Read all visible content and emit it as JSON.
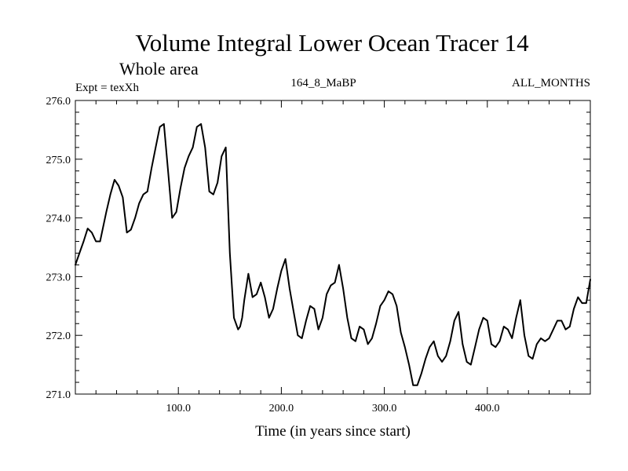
{
  "chart_data": {
    "type": "line",
    "title": "Volume Integral Lower Ocean Tracer 14",
    "subtitle": "Whole area",
    "annotations": {
      "experiment": "Expt = texXh",
      "period": "164_8_MaBP",
      "months": "ALL_MONTHS"
    },
    "xlabel": "Time (in years since start)",
    "ylabel": "",
    "xlim": [
      0,
      500
    ],
    "ylim": [
      271.0,
      276.0
    ],
    "x_ticks": [
      100,
      200,
      300,
      400
    ],
    "x_tick_labels": [
      "100.0",
      "200.0",
      "300.0",
      "400.0"
    ],
    "y_ticks": [
      271,
      272,
      273,
      274,
      275,
      276
    ],
    "y_tick_labels": [
      "271.0",
      "272.0",
      "273.0",
      "274.0",
      "275.0",
      "276.0"
    ],
    "grid": false,
    "series": [
      {
        "name": "Lower Ocean Tracer 14",
        "x": [
          0,
          4,
          8,
          12,
          16,
          20,
          24,
          30,
          34,
          38,
          42,
          46,
          50,
          54,
          58,
          62,
          66,
          70,
          74,
          78,
          82,
          86,
          90,
          94,
          98,
          102,
          106,
          110,
          114,
          118,
          122,
          126,
          130,
          134,
          138,
          142,
          146,
          150,
          154,
          158,
          160,
          162,
          164,
          168,
          172,
          176,
          180,
          184,
          188,
          192,
          196,
          200,
          204,
          208,
          212,
          216,
          220,
          224,
          228,
          232,
          236,
          240,
          244,
          248,
          252,
          256,
          260,
          264,
          268,
          272,
          276,
          280,
          284,
          288,
          292,
          296,
          300,
          304,
          308,
          312,
          316,
          320,
          324,
          328,
          332,
          336,
          340,
          344,
          348,
          352,
          356,
          360,
          364,
          368,
          372,
          376,
          380,
          384,
          388,
          392,
          396,
          400,
          404,
          408,
          412,
          416,
          420,
          424,
          428,
          432,
          436,
          440,
          444,
          448,
          452,
          456,
          460,
          464,
          468,
          472,
          476,
          480,
          484,
          488,
          492,
          496,
          500
        ],
        "values": [
          273.2,
          273.4,
          273.6,
          273.82,
          273.75,
          273.6,
          273.6,
          274.1,
          274.4,
          274.65,
          274.55,
          274.35,
          273.75,
          273.8,
          274.0,
          274.25,
          274.4,
          274.45,
          274.85,
          275.2,
          275.55,
          275.6,
          274.8,
          274.0,
          274.1,
          274.5,
          274.85,
          275.05,
          275.2,
          275.55,
          275.6,
          275.2,
          274.45,
          274.4,
          274.6,
          275.05,
          275.2,
          273.4,
          272.3,
          272.1,
          272.15,
          272.3,
          272.6,
          273.05,
          272.65,
          272.7,
          272.9,
          272.65,
          272.3,
          272.45,
          272.8,
          273.1,
          273.3,
          272.8,
          272.4,
          272.0,
          271.95,
          272.25,
          272.5,
          272.45,
          272.1,
          272.3,
          272.7,
          272.85,
          272.9,
          273.2,
          272.8,
          272.3,
          271.95,
          271.9,
          272.15,
          272.1,
          271.85,
          271.95,
          272.2,
          272.5,
          272.6,
          272.75,
          272.7,
          272.5,
          272.05,
          271.8,
          271.5,
          271.15,
          271.15,
          271.35,
          271.6,
          271.8,
          271.9,
          271.65,
          271.55,
          271.65,
          271.9,
          272.25,
          272.4,
          271.85,
          271.55,
          271.5,
          271.8,
          272.1,
          272.3,
          272.25,
          271.85,
          271.8,
          271.9,
          272.15,
          272.1,
          271.95,
          272.3,
          272.6,
          272.0,
          271.65,
          271.6,
          271.85,
          271.95,
          271.9,
          271.95,
          272.1,
          272.25,
          272.25,
          272.1,
          272.15,
          272.45,
          272.65,
          272.55,
          272.55,
          272.95
        ]
      }
    ]
  }
}
